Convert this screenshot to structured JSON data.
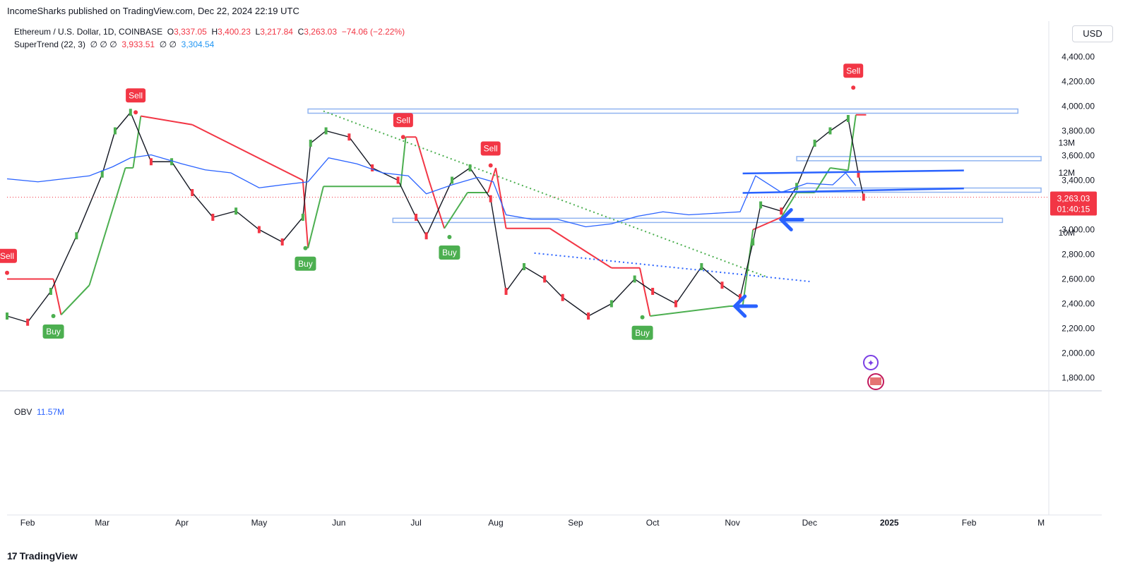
{
  "header": {
    "published": "IncomeSharks published on TradingView.com, Dec 22, 2024 22:19 UTC"
  },
  "symbol": {
    "name": "Ethereum / U.S. Dollar, 1D, COINBASE",
    "o_label": "O",
    "o": "3,337.05",
    "h_label": "H",
    "h": "3,400.23",
    "l_label": "L",
    "l": "3,217.84",
    "c_label": "C",
    "c": "3,263.03",
    "change": "−74.06 (−2.22%)"
  },
  "indicator": {
    "name": "SuperTrend (22, 3)",
    "values_empty": "∅  ∅  ∅",
    "upper": "3,933.51",
    "mid_empty": "∅  ∅",
    "lower": "3,304.54"
  },
  "obv": {
    "name": "OBV",
    "value": "11.57M"
  },
  "currency_button": "USD",
  "price_tag": {
    "price": "3,263.03",
    "countdown": "01:40:15"
  },
  "brand": "TradingView",
  "colors": {
    "up": "#4caf50",
    "down": "#f23645",
    "obv": "#2962ff",
    "annot": "#2962ff"
  },
  "chart_data": [
    {
      "type": "line",
      "title": "Ethereum / U.S. Dollar, 1D, COINBASE",
      "y_unit": "USD",
      "ylim": [
        1700,
        4500
      ],
      "y_ticks": [
        "4,400.00",
        "4,200.00",
        "4,000.00",
        "3,800.00",
        "3,600.00",
        "3,400.00",
        "3,200.00",
        "3,000.00",
        "2,800.00",
        "2,600.00",
        "2,400.00",
        "2,200.00",
        "2,000.00",
        "1,800.00"
      ],
      "x_ticks": [
        "Feb",
        "Mar",
        "Apr",
        "May",
        "Jun",
        "Jul",
        "Aug",
        "Sep",
        "Oct",
        "Nov",
        "Dec",
        "2025",
        "Feb",
        "M"
      ],
      "x_range": [
        "2024-01-24",
        "2025-03-04"
      ],
      "series": [
        {
          "name": "Ethereum / U.S. Dollar",
          "x": [
            "2024-01-24",
            "2024-02-01",
            "2024-02-10",
            "2024-02-20",
            "2024-03-01",
            "2024-03-06",
            "2024-03-12",
            "2024-03-20",
            "2024-03-28",
            "2024-04-05",
            "2024-04-13",
            "2024-04-22",
            "2024-05-01",
            "2024-05-10",
            "2024-05-18",
            "2024-05-21",
            "2024-05-27",
            "2024-06-05",
            "2024-06-14",
            "2024-06-24",
            "2024-07-01",
            "2024-07-05",
            "2024-07-15",
            "2024-07-22",
            "2024-07-30",
            "2024-08-05",
            "2024-08-12",
            "2024-08-20",
            "2024-08-27",
            "2024-09-06",
            "2024-09-15",
            "2024-09-24",
            "2024-10-01",
            "2024-10-10",
            "2024-10-20",
            "2024-10-28",
            "2024-11-04",
            "2024-11-09",
            "2024-11-12",
            "2024-11-20",
            "2024-11-26",
            "2024-12-03",
            "2024-12-09",
            "2024-12-16",
            "2024-12-20",
            "2024-12-22"
          ],
          "values": [
            2300,
            2250,
            2500,
            2950,
            3450,
            3800,
            3950,
            3550,
            3550,
            3300,
            3100,
            3150,
            3000,
            2900,
            3100,
            3700,
            3800,
            3750,
            3500,
            3400,
            3100,
            2950,
            3400,
            3500,
            3250,
            2500,
            2700,
            2600,
            2450,
            2300,
            2400,
            2600,
            2500,
            2400,
            2700,
            2550,
            2450,
            2900,
            3200,
            3150,
            3350,
            3700,
            3800,
            3900,
            3450,
            3263
          ]
        }
      ],
      "supertrend": {
        "breakpoints": [
          "2024-01-24",
          "2024-02-11",
          "2024-02-14",
          "2024-02-25",
          "2024-03-10",
          "2024-03-13",
          "2024-03-16",
          "2024-04-05",
          "2024-05-18",
          "2024-05-20",
          "2024-05-26",
          "2024-06-25",
          "2024-06-27",
          "2024-07-01",
          "2024-07-06",
          "2024-07-12",
          "2024-07-21",
          "2024-07-29",
          "2024-08-01",
          "2024-08-05",
          "2024-08-22",
          "2024-09-15",
          "2024-09-26",
          "2024-09-30",
          "2024-10-31",
          "2024-11-05",
          "2024-11-09",
          "2024-11-20",
          "2024-11-26",
          "2024-12-03",
          "2024-12-09",
          "2024-12-16",
          "2024-12-19",
          "2024-12-23"
        ],
        "levels": [
          2600,
          2600,
          2310,
          2550,
          3500,
          3500,
          3920,
          3850,
          3400,
          2850,
          3350,
          3350,
          3750,
          3750,
          3400,
          3010,
          3300,
          3300,
          3500,
          3010,
          3010,
          2690,
          2690,
          2300,
          2380,
          2380,
          3000,
          3100,
          3300,
          3300,
          3500,
          3480,
          3930,
          3930
        ],
        "signals": [
          {
            "label": "Sell",
            "date": "2024-01-24",
            "price": 2650
          },
          {
            "label": "Buy",
            "date": "2024-02-11",
            "price": 2300
          },
          {
            "label": "Sell",
            "date": "2024-03-14",
            "price": 3950
          },
          {
            "label": "Buy",
            "date": "2024-05-19",
            "price": 2850
          },
          {
            "label": "Sell",
            "date": "2024-06-26",
            "price": 3750
          },
          {
            "label": "Buy",
            "date": "2024-07-14",
            "price": 2940
          },
          {
            "label": "Sell",
            "date": "2024-07-30",
            "price": 3520
          },
          {
            "label": "Buy",
            "date": "2024-09-27",
            "price": 2290
          },
          {
            "label": "Sell",
            "date": "2024-12-18",
            "price": 4150
          }
        ]
      },
      "horizontal_lines": [
        {
          "from": "2024-05-20",
          "to": "2025-02-20",
          "y": 3960
        },
        {
          "from": "2024-11-26",
          "to": "2025-03-01",
          "y": 3575
        },
        {
          "from": "2024-11-26",
          "to": "2025-03-01",
          "y": 3320
        },
        {
          "from": "2024-06-22",
          "to": "2025-02-14",
          "y": 3075
        }
      ],
      "trend_lines": [
        {
          "style": "dotted",
          "color": "#4caf50",
          "from": [
            "2024-05-26",
            "3960"
          ],
          "to": [
            "2024-11-14",
            "2620"
          ]
        },
        {
          "style": "dotted",
          "color": "#2962ff",
          "from": [
            "2024-08-16",
            "2810"
          ],
          "to": [
            "2024-12-01",
            "2580"
          ]
        }
      ],
      "current_price": 3263.03
    },
    {
      "type": "line",
      "title": "OBV",
      "y_ticks": [
        "13M",
        "12M",
        "11M",
        "10M"
      ],
      "ylim": [
        9.8,
        13.5
      ],
      "series": [
        {
          "name": "OBV",
          "x": [
            "2024-01-24",
            "2024-02-05",
            "2024-02-15",
            "2024-02-25",
            "2024-03-05",
            "2024-03-12",
            "2024-03-20",
            "2024-04-01",
            "2024-04-10",
            "2024-04-20",
            "2024-05-01",
            "2024-05-10",
            "2024-05-20",
            "2024-05-28",
            "2024-06-08",
            "2024-06-18",
            "2024-06-28",
            "2024-07-05",
            "2024-07-15",
            "2024-07-25",
            "2024-07-31",
            "2024-08-05",
            "2024-08-15",
            "2024-08-25",
            "2024-09-05",
            "2024-09-15",
            "2024-09-25",
            "2024-10-05",
            "2024-10-15",
            "2024-10-25",
            "2024-11-04",
            "2024-11-10",
            "2024-11-20",
            "2024-11-30",
            "2024-12-10",
            "2024-12-15",
            "2024-12-19"
          ],
          "values": [
            11.8,
            11.7,
            11.8,
            11.9,
            12.2,
            12.5,
            12.6,
            12.3,
            12.1,
            12.0,
            11.5,
            11.6,
            11.7,
            12.5,
            12.3,
            12.0,
            11.9,
            11.3,
            11.6,
            11.85,
            11.7,
            10.6,
            10.45,
            10.45,
            10.2,
            10.3,
            10.55,
            10.7,
            10.6,
            10.65,
            10.7,
            11.9,
            11.35,
            11.65,
            11.6,
            12.0,
            11.57
          ]
        }
      ],
      "channel_lines": [
        {
          "from": [
            "2024-11-05",
            "11.98"
          ],
          "to": [
            "2025-01-30",
            "12.08"
          ]
        },
        {
          "from": [
            "2024-11-05",
            "11.33"
          ],
          "to": [
            "2025-01-30",
            "11.48"
          ]
        }
      ]
    }
  ]
}
